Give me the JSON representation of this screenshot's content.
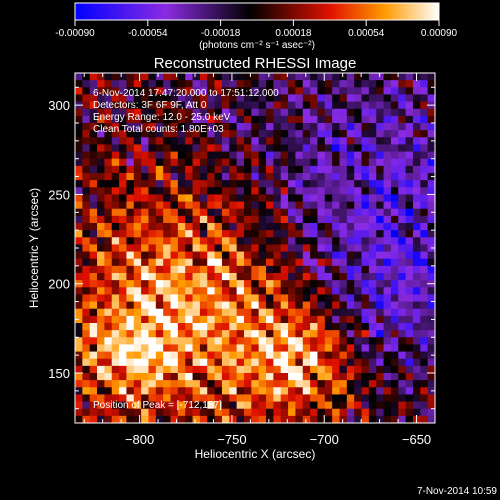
{
  "colorbar": {
    "ticks": [
      "-0.00090",
      "-0.00054",
      "-0.00018",
      "0.00018",
      "0.00054",
      "0.00090"
    ],
    "tick_values": [
      -0.0009,
      -0.00054,
      -0.00018,
      0.00018,
      0.00054,
      0.0009
    ],
    "range": [
      -0.0009,
      0.0009
    ],
    "units": "(photons cm⁻² s⁻¹ asec⁻²)",
    "stops": [
      {
        "pos": 0.0,
        "color": "#0000ff"
      },
      {
        "pos": 0.25,
        "color": "#8a2be2"
      },
      {
        "pos": 0.48,
        "color": "#000000"
      },
      {
        "pos": 0.7,
        "color": "#e01000"
      },
      {
        "pos": 0.85,
        "color": "#ff9a00"
      },
      {
        "pos": 1.0,
        "color": "#ffffff"
      }
    ]
  },
  "chart_data": {
    "type": "heatmap",
    "title": "Reconstructed RHESSI Image",
    "xlabel": "Heliocentric X (arcsec)",
    "ylabel": "Heliocentric Y (arcsec)",
    "xlim": [
      -835,
      -640
    ],
    "ylim": [
      122,
      318
    ],
    "xticks": [
      -800,
      -750,
      -700,
      -650
    ],
    "yticks": [
      150,
      200,
      250,
      300
    ],
    "annotations": [
      "6-Nov-2014 17:47:20.000 to 17:51:12.000",
      "Detectors: 3F 6F 9F, Att 0",
      "Energy Range: 12.0 - 25.0 keV",
      "Clean    Total counts: 1.80E+03"
    ],
    "peak_label": "Position of Peak = [-712,157]",
    "peak": [
      -712,
      157
    ],
    "grid": false,
    "pixel_size": 4
  },
  "footer": {
    "timestamp": "7-Nov-2014 10:59"
  }
}
